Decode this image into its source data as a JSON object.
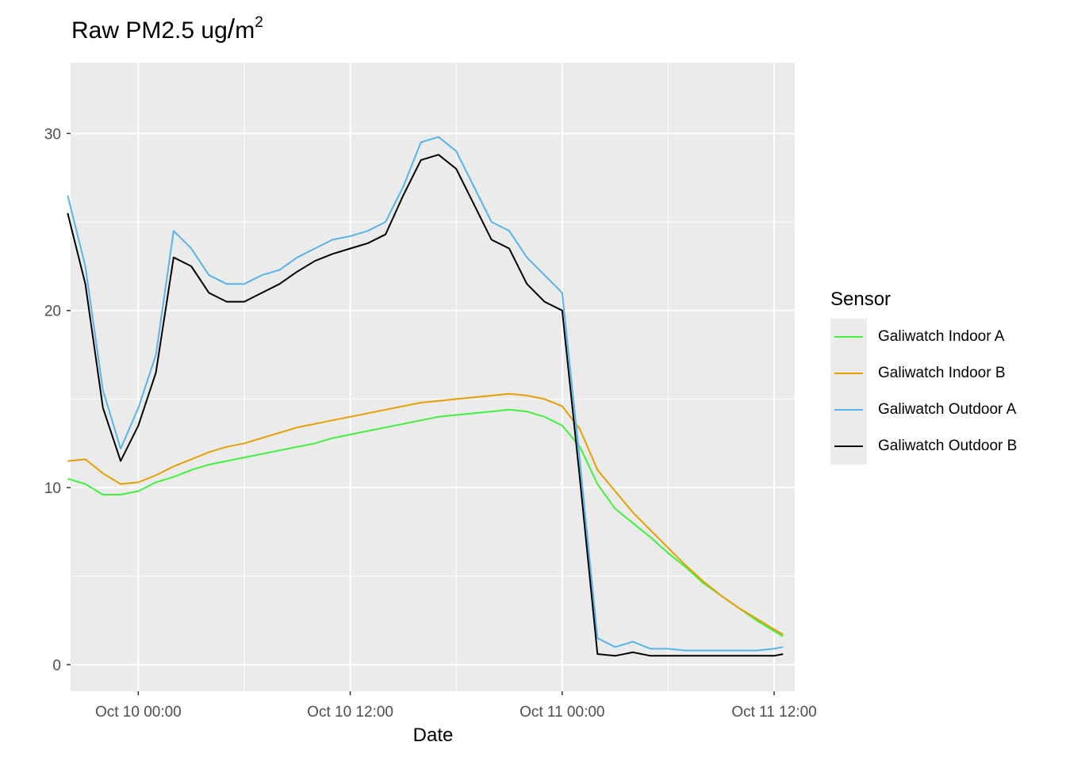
{
  "chart_data": {
    "type": "line",
    "title_text": "Raw PM2.5 ug",
    "title_unit": "m",
    "title_unit_power": "2",
    "xlabel": "Date",
    "ylabel": "",
    "ylim": [
      -1.5,
      34
    ],
    "xlim": [
      "2021-10-09 20:10",
      "2021-10-11 13:10"
    ],
    "yticks": [
      0,
      10,
      20,
      30
    ],
    "xticks": [
      {
        "at": "2021-10-10 00:00",
        "label": "Oct 10 00:00"
      },
      {
        "at": "2021-10-10 12:00",
        "label": "Oct 10 12:00"
      },
      {
        "at": "2021-10-11 00:00",
        "label": "Oct 11 00:00"
      },
      {
        "at": "2021-10-11 12:00",
        "label": "Oct 11 12:00"
      }
    ],
    "grid": true,
    "legend": {
      "title": "Sensor",
      "position": "right"
    },
    "x": [
      "2021-10-09 20:00",
      "2021-10-09 21:00",
      "2021-10-09 22:00",
      "2021-10-09 23:00",
      "2021-10-10 00:00",
      "2021-10-10 01:00",
      "2021-10-10 02:00",
      "2021-10-10 03:00",
      "2021-10-10 04:00",
      "2021-10-10 05:00",
      "2021-10-10 06:00",
      "2021-10-10 07:00",
      "2021-10-10 08:00",
      "2021-10-10 09:00",
      "2021-10-10 10:00",
      "2021-10-10 11:00",
      "2021-10-10 12:00",
      "2021-10-10 13:00",
      "2021-10-10 14:00",
      "2021-10-10 15:00",
      "2021-10-10 16:00",
      "2021-10-10 17:00",
      "2021-10-10 18:00",
      "2021-10-10 19:00",
      "2021-10-10 20:00",
      "2021-10-10 21:00",
      "2021-10-10 22:00",
      "2021-10-10 23:00",
      "2021-10-11 00:00",
      "2021-10-11 01:00",
      "2021-10-11 02:00",
      "2021-10-11 03:00",
      "2021-10-11 04:00",
      "2021-10-11 05:00",
      "2021-10-11 06:00",
      "2021-10-11 07:00",
      "2021-10-11 08:00",
      "2021-10-11 09:00",
      "2021-10-11 10:00",
      "2021-10-11 11:00",
      "2021-10-11 12:00",
      "2021-10-11 12:30"
    ],
    "series": [
      {
        "name": "Galiwatch Indoor A",
        "color": "#3ef23e",
        "values": [
          10.5,
          10.2,
          9.6,
          9.6,
          9.8,
          10.3,
          10.6,
          11.0,
          11.3,
          11.5,
          11.7,
          11.9,
          12.1,
          12.3,
          12.5,
          12.8,
          13.0,
          13.2,
          13.4,
          13.6,
          13.8,
          14.0,
          14.1,
          14.2,
          14.3,
          14.4,
          14.3,
          14.0,
          13.5,
          12.3,
          10.2,
          8.8,
          8.0,
          7.2,
          6.3,
          5.5,
          4.6,
          3.9,
          3.2,
          2.5,
          1.9,
          1.6
        ]
      },
      {
        "name": "Galiwatch Indoor B",
        "color": "#e69f00",
        "values": [
          11.5,
          11.6,
          10.8,
          10.2,
          10.3,
          10.7,
          11.2,
          11.6,
          12.0,
          12.3,
          12.5,
          12.8,
          13.1,
          13.4,
          13.6,
          13.8,
          14.0,
          14.2,
          14.4,
          14.6,
          14.8,
          14.9,
          15.0,
          15.1,
          15.2,
          15.3,
          15.2,
          15.0,
          14.6,
          13.3,
          11.0,
          9.8,
          8.6,
          7.6,
          6.6,
          5.6,
          4.7,
          3.9,
          3.2,
          2.6,
          2.0,
          1.7
        ]
      },
      {
        "name": "Galiwatch Outdoor A",
        "color": "#56b4e9",
        "values": [
          26.5,
          22.5,
          15.5,
          12.2,
          14.5,
          17.5,
          24.5,
          23.5,
          22.0,
          21.5,
          21.5,
          22.0,
          22.3,
          23.0,
          23.5,
          24.0,
          24.2,
          24.5,
          25.0,
          27.0,
          29.5,
          29.8,
          29.0,
          27.0,
          25.0,
          24.5,
          23.0,
          22.0,
          21.0,
          11.5,
          1.5,
          1.0,
          1.3,
          0.9,
          0.9,
          0.8,
          0.8,
          0.8,
          0.8,
          0.8,
          0.9,
          1.0
        ]
      },
      {
        "name": "Galiwatch Outdoor B",
        "color": "#000000",
        "values": [
          25.5,
          21.5,
          14.5,
          11.5,
          13.5,
          16.5,
          23.0,
          22.5,
          21.0,
          20.5,
          20.5,
          21.0,
          21.5,
          22.2,
          22.8,
          23.2,
          23.5,
          23.8,
          24.3,
          26.5,
          28.5,
          28.8,
          28.0,
          26.0,
          24.0,
          23.5,
          21.5,
          20.5,
          20.0,
          10.5,
          0.6,
          0.5,
          0.7,
          0.5,
          0.5,
          0.5,
          0.5,
          0.5,
          0.5,
          0.5,
          0.5,
          0.6
        ]
      }
    ]
  }
}
